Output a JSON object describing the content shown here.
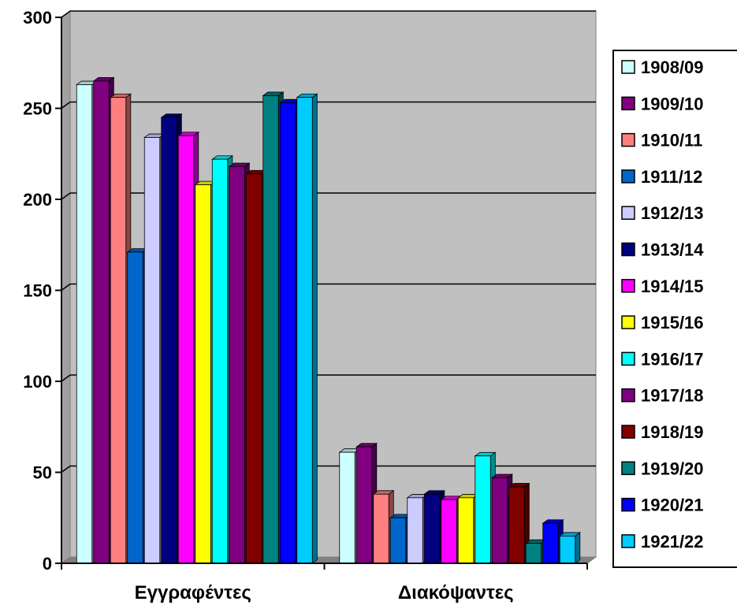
{
  "chart_data": {
    "type": "bar",
    "categories": [
      "Εγγραφέντες",
      "Διακόψαντες"
    ],
    "yticks": [
      "0",
      "50",
      "100",
      "150",
      "200",
      "250",
      "300"
    ],
    "ylim": [
      0,
      300
    ],
    "grid": true,
    "legend_position": "right",
    "series": [
      {
        "name": "1908/09",
        "color": "#ccffff",
        "values": [
          263,
          61
        ]
      },
      {
        "name": "1909/10",
        "color": "#800080",
        "values": [
          265,
          64
        ]
      },
      {
        "name": "1910/11",
        "color": "#ff8080",
        "values": [
          256,
          38
        ]
      },
      {
        "name": "1911/12",
        "color": "#0066cc",
        "values": [
          171,
          25
        ]
      },
      {
        "name": "1912/13",
        "color": "#ccccff",
        "values": [
          234,
          36
        ]
      },
      {
        "name": "1913/14",
        "color": "#000080",
        "values": [
          245,
          38
        ]
      },
      {
        "name": "1914/15",
        "color": "#ff00ff",
        "values": [
          235,
          35
        ]
      },
      {
        "name": "1915/16",
        "color": "#ffff00",
        "values": [
          208,
          36
        ]
      },
      {
        "name": "1916/17",
        "color": "#00ffff",
        "values": [
          222,
          59
        ]
      },
      {
        "name": "1917/18",
        "color": "#800080",
        "values": [
          218,
          47
        ]
      },
      {
        "name": "1918/19",
        "color": "#800000",
        "values": [
          214,
          42
        ]
      },
      {
        "name": "1919/20",
        "color": "#008080",
        "values": [
          257,
          11
        ]
      },
      {
        "name": "1920/21",
        "color": "#0000ff",
        "values": [
          253,
          22
        ]
      },
      {
        "name": "1921/22",
        "color": "#00ccff",
        "values": [
          256,
          15
        ]
      }
    ]
  }
}
